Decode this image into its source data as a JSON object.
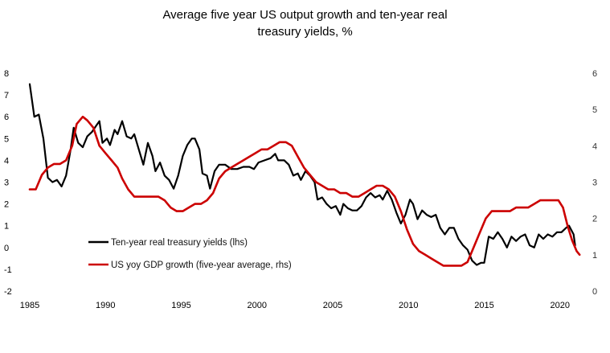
{
  "chart_data": {
    "type": "line",
    "title_lines": [
      "Average five year US output growth and ten-year real",
      "treasury yields, %"
    ],
    "x_axis": {
      "min": 1985,
      "max": 2021.5,
      "ticks": [
        "1985",
        "1990",
        "1995",
        "2000",
        "2005",
        "2010",
        "2015",
        "2020"
      ]
    },
    "y_left": {
      "min": -2,
      "max": 8,
      "ticks": [
        "8",
        "7",
        "6",
        "5",
        "4",
        "3",
        "2",
        "1",
        "0",
        "-1",
        "-2"
      ]
    },
    "y_right": {
      "min": 0,
      "max": 6,
      "ticks": [
        "6",
        "5",
        "4",
        "3",
        "2",
        "1",
        "0"
      ]
    },
    "grid": false,
    "series": [
      {
        "name": "Ten-year real treasury yields (lhs)",
        "axis": "left",
        "color": "#000000",
        "points": [
          [
            1985.0,
            7.5
          ],
          [
            1985.3,
            6.0
          ],
          [
            1985.6,
            6.1
          ],
          [
            1985.9,
            5.0
          ],
          [
            1986.2,
            3.2
          ],
          [
            1986.5,
            3.0
          ],
          [
            1986.8,
            3.1
          ],
          [
            1987.1,
            2.8
          ],
          [
            1987.4,
            3.3
          ],
          [
            1987.7,
            4.5
          ],
          [
            1987.9,
            5.5
          ],
          [
            1988.2,
            4.8
          ],
          [
            1988.5,
            4.6
          ],
          [
            1988.8,
            5.1
          ],
          [
            1989.1,
            5.3
          ],
          [
            1989.4,
            5.6
          ],
          [
            1989.6,
            5.8
          ],
          [
            1989.8,
            4.8
          ],
          [
            1990.1,
            5.0
          ],
          [
            1990.3,
            4.7
          ],
          [
            1990.6,
            5.4
          ],
          [
            1990.8,
            5.2
          ],
          [
            1991.1,
            5.8
          ],
          [
            1991.4,
            5.1
          ],
          [
            1991.7,
            5.0
          ],
          [
            1991.9,
            5.2
          ],
          [
            1992.2,
            4.5
          ],
          [
            1992.5,
            3.8
          ],
          [
            1992.8,
            4.8
          ],
          [
            1993.1,
            4.2
          ],
          [
            1993.3,
            3.5
          ],
          [
            1993.6,
            3.9
          ],
          [
            1993.9,
            3.3
          ],
          [
            1994.2,
            3.1
          ],
          [
            1994.5,
            2.7
          ],
          [
            1994.8,
            3.3
          ],
          [
            1995.1,
            4.2
          ],
          [
            1995.4,
            4.7
          ],
          [
            1995.7,
            5.0
          ],
          [
            1995.9,
            5.0
          ],
          [
            1996.2,
            4.5
          ],
          [
            1996.4,
            3.4
          ],
          [
            1996.7,
            3.3
          ],
          [
            1996.9,
            2.7
          ],
          [
            1997.2,
            3.5
          ],
          [
            1997.5,
            3.8
          ],
          [
            1997.9,
            3.8
          ],
          [
            1998.3,
            3.6
          ],
          [
            1998.7,
            3.6
          ],
          [
            1999.1,
            3.7
          ],
          [
            1999.5,
            3.7
          ],
          [
            1999.8,
            3.6
          ],
          [
            2000.1,
            3.9
          ],
          [
            2000.5,
            4.0
          ],
          [
            2000.9,
            4.1
          ],
          [
            2001.2,
            4.3
          ],
          [
            2001.4,
            4.0
          ],
          [
            2001.8,
            4.0
          ],
          [
            2002.1,
            3.8
          ],
          [
            2002.4,
            3.3
          ],
          [
            2002.7,
            3.4
          ],
          [
            2002.9,
            3.1
          ],
          [
            2003.2,
            3.5
          ],
          [
            2003.5,
            3.3
          ],
          [
            2003.8,
            3.0
          ],
          [
            2004.0,
            2.2
          ],
          [
            2004.3,
            2.3
          ],
          [
            2004.6,
            2.0
          ],
          [
            2004.9,
            1.8
          ],
          [
            2005.2,
            1.9
          ],
          [
            2005.5,
            1.5
          ],
          [
            2005.7,
            2.0
          ],
          [
            2006.0,
            1.8
          ],
          [
            2006.3,
            1.7
          ],
          [
            2006.6,
            1.7
          ],
          [
            2006.9,
            1.9
          ],
          [
            2007.2,
            2.3
          ],
          [
            2007.5,
            2.5
          ],
          [
            2007.8,
            2.3
          ],
          [
            2008.1,
            2.4
          ],
          [
            2008.3,
            2.2
          ],
          [
            2008.6,
            2.6
          ],
          [
            2008.9,
            2.2
          ],
          [
            2009.2,
            1.6
          ],
          [
            2009.5,
            1.1
          ],
          [
            2009.8,
            1.5
          ],
          [
            2010.1,
            2.2
          ],
          [
            2010.3,
            2.0
          ],
          [
            2010.6,
            1.3
          ],
          [
            2010.9,
            1.7
          ],
          [
            2011.2,
            1.5
          ],
          [
            2011.5,
            1.4
          ],
          [
            2011.8,
            1.5
          ],
          [
            2012.1,
            0.9
          ],
          [
            2012.4,
            0.6
          ],
          [
            2012.7,
            0.9
          ],
          [
            2013.0,
            0.9
          ],
          [
            2013.3,
            0.4
          ],
          [
            2013.6,
            0.1
          ],
          [
            2013.9,
            -0.1
          ],
          [
            2014.2,
            -0.6
          ],
          [
            2014.5,
            -0.8
          ],
          [
            2014.8,
            -0.7
          ],
          [
            2015.0,
            -0.7
          ],
          [
            2015.3,
            0.5
          ],
          [
            2015.6,
            0.4
          ],
          [
            2015.9,
            0.7
          ],
          [
            2016.2,
            0.4
          ],
          [
            2016.5,
            0.0
          ],
          [
            2016.8,
            0.5
          ],
          [
            2017.1,
            0.3
          ],
          [
            2017.4,
            0.5
          ],
          [
            2017.7,
            0.6
          ],
          [
            2018.0,
            0.1
          ],
          [
            2018.3,
            0.0
          ],
          [
            2018.6,
            0.6
          ],
          [
            2018.9,
            0.4
          ],
          [
            2019.2,
            0.6
          ],
          [
            2019.5,
            0.5
          ],
          [
            2019.8,
            0.7
          ],
          [
            2020.1,
            0.7
          ],
          [
            2020.4,
            0.9
          ],
          [
            2020.6,
            1.0
          ],
          [
            2020.9,
            0.6
          ],
          [
            2021.0,
            0.1
          ]
        ]
      },
      {
        "name": "US yoy GDP growth (five-year average, rhs)",
        "axis": "right",
        "color": "#cc0000",
        "points": [
          [
            1985.0,
            2.8
          ],
          [
            1985.4,
            2.8
          ],
          [
            1985.8,
            3.2
          ],
          [
            1986.2,
            3.4
          ],
          [
            1986.6,
            3.5
          ],
          [
            1987.0,
            3.5
          ],
          [
            1987.4,
            3.6
          ],
          [
            1987.8,
            4.0
          ],
          [
            1988.1,
            4.6
          ],
          [
            1988.5,
            4.8
          ],
          [
            1988.8,
            4.7
          ],
          [
            1989.2,
            4.5
          ],
          [
            1989.6,
            4.0
          ],
          [
            1990.0,
            3.8
          ],
          [
            1990.4,
            3.6
          ],
          [
            1990.8,
            3.4
          ],
          [
            1991.1,
            3.1
          ],
          [
            1991.5,
            2.8
          ],
          [
            1991.9,
            2.6
          ],
          [
            1992.3,
            2.6
          ],
          [
            1992.7,
            2.6
          ],
          [
            1993.1,
            2.6
          ],
          [
            1993.5,
            2.6
          ],
          [
            1993.9,
            2.5
          ],
          [
            1994.3,
            2.3
          ],
          [
            1994.7,
            2.2
          ],
          [
            1995.1,
            2.2
          ],
          [
            1995.5,
            2.3
          ],
          [
            1995.9,
            2.4
          ],
          [
            1996.3,
            2.4
          ],
          [
            1996.7,
            2.5
          ],
          [
            1997.1,
            2.7
          ],
          [
            1997.5,
            3.1
          ],
          [
            1997.9,
            3.3
          ],
          [
            1998.3,
            3.4
          ],
          [
            1998.7,
            3.5
          ],
          [
            1999.1,
            3.6
          ],
          [
            1999.5,
            3.7
          ],
          [
            1999.9,
            3.8
          ],
          [
            2000.3,
            3.9
          ],
          [
            2000.7,
            3.9
          ],
          [
            2001.1,
            4.0
          ],
          [
            2001.5,
            4.1
          ],
          [
            2001.9,
            4.1
          ],
          [
            2002.3,
            4.0
          ],
          [
            2002.7,
            3.7
          ],
          [
            2003.1,
            3.4
          ],
          [
            2003.5,
            3.2
          ],
          [
            2003.9,
            3.0
          ],
          [
            2004.3,
            2.9
          ],
          [
            2004.7,
            2.8
          ],
          [
            2005.1,
            2.8
          ],
          [
            2005.5,
            2.7
          ],
          [
            2005.9,
            2.7
          ],
          [
            2006.3,
            2.6
          ],
          [
            2006.7,
            2.6
          ],
          [
            2007.1,
            2.7
          ],
          [
            2007.5,
            2.8
          ],
          [
            2007.9,
            2.9
          ],
          [
            2008.3,
            2.9
          ],
          [
            2008.7,
            2.8
          ],
          [
            2009.1,
            2.6
          ],
          [
            2009.5,
            2.2
          ],
          [
            2009.9,
            1.7
          ],
          [
            2010.3,
            1.3
          ],
          [
            2010.7,
            1.1
          ],
          [
            2011.1,
            1.0
          ],
          [
            2011.5,
            0.9
          ],
          [
            2011.9,
            0.8
          ],
          [
            2012.3,
            0.7
          ],
          [
            2012.7,
            0.7
          ],
          [
            2013.1,
            0.7
          ],
          [
            2013.5,
            0.7
          ],
          [
            2013.9,
            0.8
          ],
          [
            2014.3,
            1.2
          ],
          [
            2014.7,
            1.6
          ],
          [
            2015.1,
            2.0
          ],
          [
            2015.5,
            2.2
          ],
          [
            2015.9,
            2.2
          ],
          [
            2016.3,
            2.2
          ],
          [
            2016.7,
            2.2
          ],
          [
            2017.1,
            2.3
          ],
          [
            2017.5,
            2.3
          ],
          [
            2017.9,
            2.3
          ],
          [
            2018.3,
            2.4
          ],
          [
            2018.7,
            2.5
          ],
          [
            2019.1,
            2.5
          ],
          [
            2019.5,
            2.5
          ],
          [
            2019.9,
            2.5
          ],
          [
            2020.2,
            2.3
          ],
          [
            2020.5,
            1.8
          ],
          [
            2020.8,
            1.4
          ],
          [
            2021.1,
            1.1
          ],
          [
            2021.3,
            1.0
          ]
        ]
      }
    ]
  }
}
